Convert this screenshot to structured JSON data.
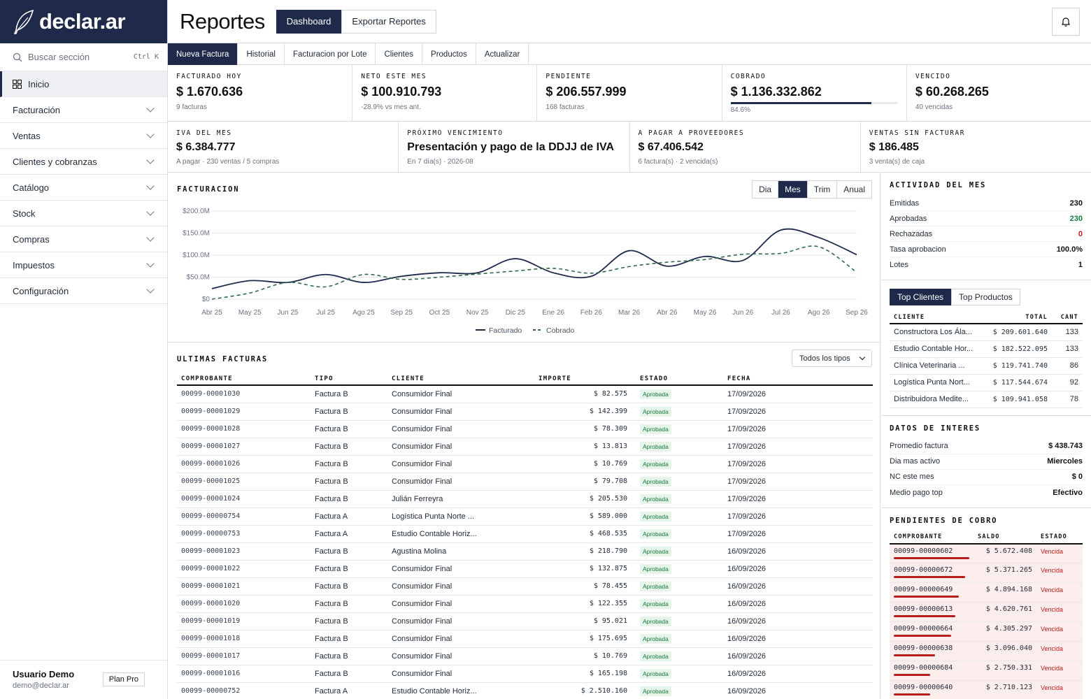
{
  "sidebar": {
    "brand": "declar.ar",
    "search_label": "Buscar sección",
    "search_shortcut": "Ctrl K",
    "items": [
      {
        "label": "Inicio",
        "icon": "grid-icon"
      },
      {
        "label": "Facturación"
      },
      {
        "label": "Ventas"
      },
      {
        "label": "Clientes y cobranzas"
      },
      {
        "label": "Catálogo"
      },
      {
        "label": "Stock"
      },
      {
        "label": "Compras"
      },
      {
        "label": "Impuestos"
      },
      {
        "label": "Configuración"
      }
    ],
    "user_name": "Usuario Demo",
    "user_email": "demo@declar.ar",
    "plan": "Plan Pro"
  },
  "header": {
    "title": "Reportes",
    "tabs": [
      "Dashboard",
      "Exportar Reportes"
    ]
  },
  "subnav": [
    "Nueva Factura",
    "Historial",
    "Facturacion por Lote",
    "Clientes",
    "Productos",
    "Actualizar"
  ],
  "kpis_row1": [
    {
      "label": "FACTURADO HOY",
      "value": "$ 1.670.636",
      "sub": "9 facturas"
    },
    {
      "label": "NETO ESTE MES",
      "value": "$ 100.910.793",
      "sub": "-28.9% vs mes ant."
    },
    {
      "label": "PENDIENTE",
      "value": "$ 206.557.999",
      "sub": "168 facturas"
    },
    {
      "label": "COBRADO",
      "value": "$ 1.136.332.862",
      "sub": "84.6%",
      "progress": 0.846
    },
    {
      "label": "VENCIDO",
      "value": "$ 60.268.265",
      "sub": "40 vencidas"
    }
  ],
  "kpis_row2": [
    {
      "label": "IVA DEL MES",
      "value": "$ 6.384.777",
      "sub": "A pagar · 230 ventas / 5 compras"
    },
    {
      "label": "PRÓXIMO VENCIMIENTO",
      "value": "Presentación y pago de la DDJJ de IVA",
      "sub": "En 7 día(s) · 2026-08"
    },
    {
      "label": "A PAGAR A PROVEEDORES",
      "value": "$ 67.406.542",
      "sub": "6 factura(s) · 2 vencida(s)"
    },
    {
      "label": "VENTAS SIN FACTURAR",
      "value": "$ 186.485",
      "sub": "3 venta(s) de caja"
    }
  ],
  "chart_section": {
    "title": "FACTURACION",
    "periods": [
      "Dia",
      "Mes",
      "Trim",
      "Anual"
    ],
    "active_period": "Mes"
  },
  "chart_data": {
    "type": "line",
    "x": [
      "Abr 25",
      "May 25",
      "Jun 25",
      "Jul 25",
      "Ago 25",
      "Sep 25",
      "Oct 25",
      "Nov 25",
      "Dic 25",
      "Ene 26",
      "Feb 26",
      "Mar 26",
      "Abr 26",
      "May 26",
      "Jun 26",
      "Jul 26",
      "Ago 26",
      "Sep 26"
    ],
    "yticks": [
      "$0",
      "$50.0M",
      "$100.0M",
      "$150.0M",
      "$200.0M"
    ],
    "ylim": [
      0,
      200
    ],
    "series": [
      {
        "name": "Facturado",
        "color": "#1f2a4a",
        "style": "solid",
        "values": [
          24,
          42,
          38,
          56,
          38,
          52,
          60,
          60,
          92,
          60,
          52,
          110,
          75,
          97,
          88,
          157,
          140,
          101
        ]
      },
      {
        "name": "Cobrado",
        "color": "#2f6b45",
        "style": "dashed",
        "values": [
          0,
          14,
          38,
          28,
          56,
          45,
          50,
          57,
          64,
          70,
          59,
          74,
          84,
          90,
          102,
          104,
          119,
          61
        ]
      }
    ],
    "legend": "bottom-center"
  },
  "facturas": {
    "title": "ULTIMAS FACTURAS",
    "filter": "Todos los tipos",
    "columns": [
      "COMPROBANTE",
      "TIPO",
      "CLIENTE",
      "IMPORTE",
      "ESTADO",
      "FECHA"
    ],
    "rows": [
      [
        "00099-00001030",
        "Factura B",
        "Consumidor Final",
        "$ 82.575",
        "Aprobada",
        "17/09/2026"
      ],
      [
        "00099-00001029",
        "Factura B",
        "Consumidor Final",
        "$ 142.399",
        "Aprobada",
        "17/09/2026"
      ],
      [
        "00099-00001028",
        "Factura B",
        "Consumidor Final",
        "$ 78.309",
        "Aprobada",
        "17/09/2026"
      ],
      [
        "00099-00001027",
        "Factura B",
        "Consumidor Final",
        "$ 13.813",
        "Aprobada",
        "17/09/2026"
      ],
      [
        "00099-00001026",
        "Factura B",
        "Consumidor Final",
        "$ 10.769",
        "Aprobada",
        "17/09/2026"
      ],
      [
        "00099-00001025",
        "Factura B",
        "Consumidor Final",
        "$ 79.708",
        "Aprobada",
        "17/09/2026"
      ],
      [
        "00099-00001024",
        "Factura B",
        "Julián Ferreyra",
        "$ 205.530",
        "Aprobada",
        "17/09/2026"
      ],
      [
        "00099-00000754",
        "Factura A",
        "Logística Punta Norte ...",
        "$ 589.000",
        "Aprobada",
        "17/09/2026"
      ],
      [
        "00099-00000753",
        "Factura A",
        "Estudio Contable Horiz...",
        "$ 468.535",
        "Aprobada",
        "17/09/2026"
      ],
      [
        "00099-00001023",
        "Factura B",
        "Agustina Molina",
        "$ 218.790",
        "Aprobada",
        "16/09/2026"
      ],
      [
        "00099-00001022",
        "Factura B",
        "Consumidor Final",
        "$ 132.875",
        "Aprobada",
        "16/09/2026"
      ],
      [
        "00099-00001021",
        "Factura B",
        "Consumidor Final",
        "$ 78.455",
        "Aprobada",
        "16/09/2026"
      ],
      [
        "00099-00001020",
        "Factura B",
        "Consumidor Final",
        "$ 122.355",
        "Aprobada",
        "16/09/2026"
      ],
      [
        "00099-00001019",
        "Factura B",
        "Consumidor Final",
        "$ 95.021",
        "Aprobada",
        "16/09/2026"
      ],
      [
        "00099-00001018",
        "Factura B",
        "Consumidor Final",
        "$ 175.695",
        "Aprobada",
        "16/09/2026"
      ],
      [
        "00099-00001017",
        "Factura B",
        "Consumidor Final",
        "$ 10.769",
        "Aprobada",
        "16/09/2026"
      ],
      [
        "00099-00001016",
        "Factura B",
        "Consumidor Final",
        "$ 165.198",
        "Aprobada",
        "16/09/2026"
      ],
      [
        "00099-00000752",
        "Factura A",
        "Estudio Contable Horiz...",
        "$ 2.510.160",
        "Aprobada",
        "16/09/2026"
      ]
    ]
  },
  "actividad": {
    "title": "ACTIVIDAD DEL MES",
    "rows": [
      {
        "k": "Emitidas",
        "v": "230",
        "color": "#111111"
      },
      {
        "k": "Aprobadas",
        "v": "230",
        "color": "#167a3e"
      },
      {
        "k": "Rechazadas",
        "v": "0",
        "color": "#b91c1c"
      },
      {
        "k": "Tasa aprobacion",
        "v": "100.0%",
        "color": "#111111"
      },
      {
        "k": "Lotes",
        "v": "1",
        "color": "#111111"
      }
    ]
  },
  "top": {
    "tabs": [
      "Top Clientes",
      "Top Productos"
    ],
    "columns": [
      "CLIENTE",
      "TOTAL",
      "CANT"
    ],
    "rows": [
      [
        "Constructora Los Ála...",
        "$ 209.601.640",
        "133"
      ],
      [
        "Estudio Contable Hor...",
        "$ 182.522.095",
        "133"
      ],
      [
        "Clínica Veterinaria ...",
        "$ 119.741.740",
        "86"
      ],
      [
        "Logística Punta Nort...",
        "$ 117.544.674",
        "92"
      ],
      [
        "Distribuidora Medite...",
        "$ 109.941.058",
        "78"
      ]
    ]
  },
  "datos": {
    "title": "DATOS DE INTERES",
    "rows": [
      {
        "k": "Promedio factura",
        "v": "$ 438.743"
      },
      {
        "k": "Dia mas activo",
        "v": "Miercoles"
      },
      {
        "k": "NC este mes",
        "v": "$ 0"
      },
      {
        "k": "Medio pago top",
        "v": "Efectivo"
      }
    ]
  },
  "pendientes": {
    "title": "PENDIENTES DE COBRO",
    "columns": [
      "COMPROBANTE",
      "SALDO",
      "ESTADO"
    ],
    "rows": [
      [
        "00099-00000602",
        "$ 5.672.408",
        "Vencida"
      ],
      [
        "00099-00000672",
        "$ 5.371.265",
        "Vencida"
      ],
      [
        "00099-00000649",
        "$ 4.894.168",
        "Vencida"
      ],
      [
        "00099-00000613",
        "$ 4.620.761",
        "Vencida"
      ],
      [
        "00099-00000664",
        "$ 4.305.297",
        "Vencida"
      ],
      [
        "00099-00000638",
        "$ 3.096.040",
        "Vencida"
      ],
      [
        "00099-00000684",
        "$ 2.750.331",
        "Vencida"
      ],
      [
        "00099-00000640",
        "$ 2.710.123",
        "Vencida"
      ]
    ]
  }
}
